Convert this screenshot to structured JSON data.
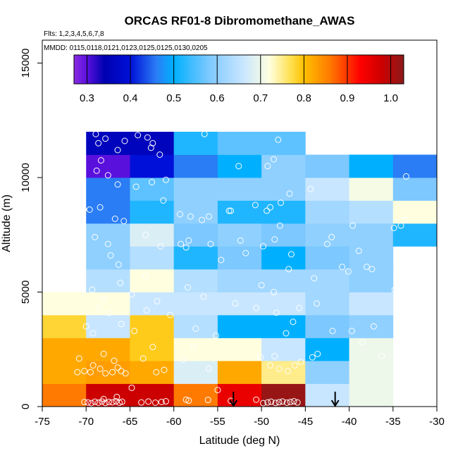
{
  "chart_data": {
    "type": "heatmap",
    "title": "ORCAS RF01-8 Dibromomethane_AWAS",
    "subtitle_flights": "Flts: 1,2,3,4,5,6,7,8",
    "subtitle_dates": "MMDD: 0115,0118,0121,0123,0125,0125,0130,0205",
    "xlabel": "Latitude (deg N)",
    "ylabel": "Altitude (m)",
    "xlim": [
      -75,
      -30
    ],
    "ylim": [
      0,
      16000
    ],
    "x_ticks": [
      -75,
      -70,
      -65,
      -60,
      -55,
      -50,
      -45,
      -40,
      -35,
      -30
    ],
    "y_ticks": [
      0,
      5000,
      10000,
      15000
    ],
    "colorbar": {
      "range": [
        0.27,
        1.03
      ],
      "ticks": [
        0.3,
        0.4,
        0.5,
        0.6,
        0.7,
        0.8,
        0.9,
        1.0
      ],
      "tick_labels": [
        "0.3",
        "0.4",
        "0.5",
        "0.6",
        "0.7",
        "0.8",
        "0.9",
        "1.0"
      ],
      "stops": [
        [
          0.27,
          "#8a2be2"
        ],
        [
          0.3,
          "#5a10dd"
        ],
        [
          0.34,
          "#0000b0"
        ],
        [
          0.4,
          "#0010d8"
        ],
        [
          0.46,
          "#2a7df5"
        ],
        [
          0.5,
          "#00b0ff"
        ],
        [
          0.58,
          "#7cc8ff"
        ],
        [
          0.66,
          "#c8e6ff"
        ],
        [
          0.72,
          "#ffffe0"
        ],
        [
          0.77,
          "#ffe050"
        ],
        [
          0.8,
          "#ffc000"
        ],
        [
          0.86,
          "#ff7a00"
        ],
        [
          0.93,
          "#ff0000"
        ],
        [
          0.98,
          "#cc0000"
        ],
        [
          1.03,
          "#8b1a1a"
        ]
      ]
    },
    "lat_edges": [
      -75,
      -70,
      -65,
      -60,
      -55,
      -50,
      -45,
      -40,
      -35,
      -30
    ],
    "alt_edges": [
      0,
      1000,
      2000,
      3000,
      4000,
      5000,
      6000,
      7000,
      8000,
      9000,
      10000,
      11000,
      12000
    ],
    "cells": [
      [
        0.86,
        0.98,
        0.98,
        0.86,
        0.95,
        1.02,
        0.66,
        0.7,
        null
      ],
      [
        0.82,
        0.83,
        0.82,
        0.68,
        0.82,
        0.75,
        0.6,
        0.7,
        null
      ],
      [
        0.82,
        0.82,
        0.79,
        0.72,
        0.72,
        0.66,
        0.5,
        0.7,
        null
      ],
      [
        0.78,
        0.66,
        0.79,
        0.64,
        0.5,
        0.5,
        0.58,
        0.6,
        null
      ],
      [
        0.72,
        0.72,
        0.66,
        0.66,
        0.66,
        0.66,
        0.62,
        0.66,
        null
      ],
      [
        null,
        0.64,
        0.72,
        0.64,
        0.62,
        0.62,
        0.62,
        0.6,
        null
      ],
      [
        null,
        0.6,
        0.64,
        0.52,
        0.58,
        0.5,
        0.58,
        0.6,
        null
      ],
      [
        null,
        0.6,
        0.68,
        0.58,
        0.6,
        0.58,
        0.6,
        0.6,
        0.52
      ],
      [
        null,
        0.46,
        0.52,
        0.6,
        0.52,
        0.52,
        0.62,
        0.64,
        0.72
      ],
      [
        null,
        0.46,
        0.56,
        0.6,
        0.6,
        0.6,
        0.66,
        0.71,
        0.58
      ],
      [
        null,
        0.3,
        0.4,
        0.46,
        0.5,
        0.6,
        0.58,
        0.5,
        0.46
      ],
      [
        null,
        0.36,
        0.36,
        0.52,
        0.56,
        0.56,
        null,
        null,
        null
      ]
    ],
    "samples": [
      [
        -70.2,
        200
      ],
      [
        -69.8,
        180
      ],
      [
        -69.4,
        150
      ],
      [
        -69.0,
        210
      ],
      [
        -68.6,
        170
      ],
      [
        -68.2,
        220
      ],
      [
        -67.8,
        160
      ],
      [
        -67.4,
        200
      ],
      [
        -67.0,
        190
      ],
      [
        -66.6,
        230
      ],
      [
        -66.2,
        170
      ],
      [
        -65.9,
        210
      ],
      [
        -68.0,
        330
      ],
      [
        -66.5,
        420
      ],
      [
        -64.8,
        820
      ],
      [
        -63.7,
        180
      ],
      [
        -62.9,
        220
      ],
      [
        -62.1,
        170
      ],
      [
        -61.4,
        200
      ],
      [
        -60.9,
        230
      ],
      [
        -58.6,
        300
      ],
      [
        -58.3,
        260
      ],
      [
        -56.1,
        290
      ],
      [
        -55.0,
        720
      ],
      [
        -53.5,
        250
      ],
      [
        -50.6,
        300
      ],
      [
        -49.8,
        150
      ],
      [
        -49.3,
        180
      ],
      [
        -48.9,
        210
      ],
      [
        -48.4,
        160
      ],
      [
        -48.0,
        190
      ],
      [
        -47.6,
        220
      ],
      [
        -47.1,
        170
      ],
      [
        -46.7,
        200
      ],
      [
        -46.3,
        230
      ],
      [
        -45.9,
        180
      ],
      [
        -71.0,
        1500
      ],
      [
        -70.2,
        1550
      ],
      [
        -69.5,
        1500
      ],
      [
        -69.2,
        1800
      ],
      [
        -68.4,
        1650
      ],
      [
        -67.8,
        1450
      ],
      [
        -67.0,
        1500
      ],
      [
        -66.4,
        1700
      ],
      [
        -66.0,
        1550
      ],
      [
        -65.5,
        1450
      ],
      [
        -70.8,
        2100
      ],
      [
        -68.0,
        2300
      ],
      [
        -66.8,
        2000
      ],
      [
        -62.0,
        1500
      ],
      [
        -61.1,
        1600
      ],
      [
        -63.5,
        2100
      ],
      [
        -62.4,
        2600
      ],
      [
        -56.0,
        1650
      ],
      [
        -58.9,
        2050
      ],
      [
        -57.8,
        2600
      ],
      [
        -49.0,
        1800
      ],
      [
        -48.0,
        1650
      ],
      [
        -47.0,
        1550
      ],
      [
        -46.2,
        1800
      ],
      [
        -45.5,
        1950
      ],
      [
        -48.5,
        2200
      ],
      [
        -50.1,
        2150
      ],
      [
        -43.6,
        2300
      ],
      [
        -44.2,
        2150
      ],
      [
        -38.5,
        2800
      ],
      [
        -36.3,
        2200
      ],
      [
        -70.0,
        3500
      ],
      [
        -69.2,
        3200
      ],
      [
        -68.5,
        4300
      ],
      [
        -67.4,
        4100
      ],
      [
        -66.0,
        3600
      ],
      [
        -64.5,
        3300
      ],
      [
        -63.1,
        4200
      ],
      [
        -61.9,
        4600
      ],
      [
        -60.4,
        4000
      ],
      [
        -57.5,
        3400
      ],
      [
        -55.2,
        3100
      ],
      [
        -53.0,
        4500
      ],
      [
        -50.6,
        4300
      ],
      [
        -48.3,
        4100
      ],
      [
        -47.2,
        3200
      ],
      [
        -46.4,
        3700
      ],
      [
        -45.7,
        4300
      ],
      [
        -43.7,
        4500
      ],
      [
        -41.9,
        3300
      ],
      [
        -39.7,
        3300
      ],
      [
        -37.2,
        3500
      ],
      [
        -69.3,
        5100
      ],
      [
        -68.0,
        4700
      ],
      [
        -66.1,
        5400
      ],
      [
        -64.8,
        4900
      ],
      [
        -63.2,
        5700
      ],
      [
        -58.4,
        5200
      ],
      [
        -56.6,
        4800
      ],
      [
        -54.6,
        6400
      ],
      [
        -51.8,
        6700
      ],
      [
        -50.0,
        5300
      ],
      [
        -48.6,
        5000
      ],
      [
        -46.9,
        6000
      ],
      [
        -44.0,
        5600
      ],
      [
        -40.8,
        6100
      ],
      [
        -40.1,
        5900
      ],
      [
        -38.9,
        6800
      ],
      [
        -38.0,
        6100
      ],
      [
        -37.4,
        6000
      ],
      [
        -34.8,
        5100
      ],
      [
        -70.5,
        7100
      ],
      [
        -69.0,
        7400
      ],
      [
        -67.5,
        7100
      ],
      [
        -67.2,
        6600
      ],
      [
        -66.3,
        6200
      ],
      [
        -63.2,
        7500
      ],
      [
        -61.5,
        7000
      ],
      [
        -59.2,
        7100
      ],
      [
        -58.6,
        6950
      ],
      [
        -58.3,
        7250
      ],
      [
        -55.8,
        7100
      ],
      [
        -52.4,
        7250
      ],
      [
        -49.8,
        7000
      ],
      [
        -48.5,
        7300
      ],
      [
        -47.9,
        7900
      ],
      [
        -46.6,
        6650
      ],
      [
        -42.5,
        7100
      ],
      [
        -42.0,
        7400
      ],
      [
        -39.6,
        7900
      ],
      [
        -34.9,
        7800
      ],
      [
        -34.1,
        7900
      ],
      [
        -70.3,
        8600
      ],
      [
        -69.6,
        8600
      ],
      [
        -68.4,
        8700
      ],
      [
        -66.7,
        8200
      ],
      [
        -65.7,
        8100
      ],
      [
        -61.2,
        9000
      ],
      [
        -59.3,
        8400
      ],
      [
        -58.1,
        8300
      ],
      [
        -56.8,
        8150
      ],
      [
        -56.0,
        8300
      ],
      [
        -53.7,
        8550
      ],
      [
        -53.5,
        8550
      ],
      [
        -50.7,
        8800
      ],
      [
        -49.4,
        8550
      ],
      [
        -49.0,
        8700
      ],
      [
        -47.8,
        8900
      ],
      [
        -44.4,
        9500
      ],
      [
        -33.6,
        8150
      ],
      [
        -68.8,
        10300
      ],
      [
        -67.5,
        10100
      ],
      [
        -66.4,
        9700
      ],
      [
        -64.3,
        9600
      ],
      [
        -62.5,
        9800
      ],
      [
        -60.9,
        9900
      ],
      [
        -52.6,
        10500
      ],
      [
        -49.3,
        10500
      ],
      [
        -48.6,
        10800
      ],
      [
        -46.8,
        9300
      ],
      [
        -33.5,
        10050
      ],
      [
        -68.9,
        11900
      ],
      [
        -68.6,
        11500
      ],
      [
        -67.8,
        11700
      ],
      [
        -65.6,
        11600
      ],
      [
        -64.1,
        11850
      ],
      [
        -63.0,
        11750
      ],
      [
        -62.6,
        11300
      ],
      [
        -62.4,
        11500
      ],
      [
        -61.6,
        11000
      ],
      [
        -68.3,
        10750
      ],
      [
        -66.4,
        11200
      ],
      [
        -56.5,
        11900
      ],
      [
        -48.1,
        11650
      ]
    ],
    "arrows": [
      -53.2,
      -41.6
    ]
  }
}
